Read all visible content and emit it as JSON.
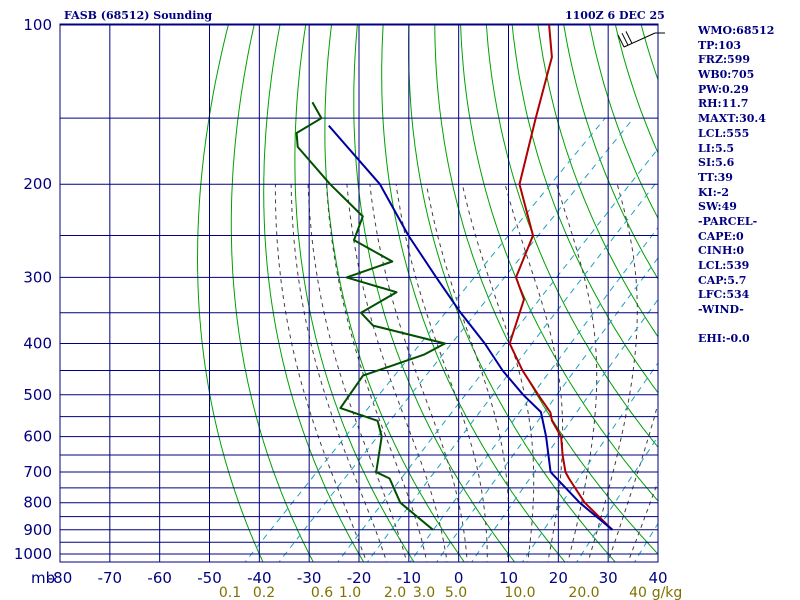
{
  "header": {
    "station_title": "FASB (68512) Sounding",
    "time_date": "1100Z  6 DEC 25"
  },
  "indices": [
    "WMO:68512",
    "TP:103",
    "FRZ:599",
    "WB0:705",
    "PW:0.29",
    "RH:11.7",
    "MAXT:30.4",
    "LCL:555",
    "LI:5.5",
    "SI:5.6",
    "TT:39",
    "KI:-2",
    "SW:49",
    "-PARCEL-",
    "CAPE:0",
    "CINH:0",
    "LCL:539",
    "CAP:5.7",
    "LFC:534",
    "-WIND-",
    "",
    "EHI:-0.0"
  ],
  "chart_data": {
    "type": "line",
    "title": "",
    "xlabel": "",
    "ylabel": "mb",
    "chart_kind": "skew-t log-p sounding",
    "y_scale": "log pressure",
    "xlim": [
      -80,
      40
    ],
    "ylim": [
      1000,
      100
    ],
    "pressure_ticks": [
      100,
      200,
      300,
      400,
      500,
      600,
      700,
      800,
      900,
      1000
    ],
    "pressure_gridlines": [
      100,
      150,
      200,
      250,
      300,
      350,
      400,
      450,
      500,
      550,
      600,
      650,
      700,
      750,
      800,
      850,
      900,
      950,
      1000
    ],
    "temperature_ticks": [
      -80,
      -70,
      -60,
      -50,
      -40,
      -30,
      -20,
      -10,
      0,
      10,
      20,
      30,
      40
    ],
    "temperature_tick_labels": [
      "-80",
      "-70",
      "-60",
      "-50",
      "-40",
      "-30",
      "-20",
      "-10",
      "0",
      "10",
      "20",
      "30",
      "40"
    ],
    "mixing_ratio_labels": [
      "0.1",
      "0.2",
      "0.6",
      "1.0",
      "2.0",
      "3.0",
      "5.0",
      "10.0",
      "20.0",
      "40",
      "g/kg"
    ],
    "mixing_ratio_values": [
      0.1,
      0.2,
      0.6,
      1.0,
      2.0,
      3.0,
      5.0,
      10.0,
      20.0,
      40
    ],
    "series": [
      {
        "role": "temperature",
        "color": "#b00000",
        "points": [
          [
            100,
            -88
          ],
          [
            115,
            -81
          ],
          [
            150,
            -72
          ],
          [
            200,
            -62
          ],
          [
            250,
            -49
          ],
          [
            300,
            -44
          ],
          [
            330,
            -38
          ],
          [
            400,
            -32
          ],
          [
            450,
            -24
          ],
          [
            500,
            -16
          ],
          [
            540,
            -10
          ],
          [
            560,
            -8
          ],
          [
            600,
            -3
          ],
          [
            650,
            1
          ],
          [
            700,
            5
          ],
          [
            720,
            7
          ],
          [
            800,
            15
          ],
          [
            900,
            26
          ]
        ]
      },
      {
        "role": "dewpoint",
        "color": "#005000",
        "points": [
          [
            140,
            -120
          ],
          [
            150,
            -115
          ],
          [
            160,
            -117
          ],
          [
            170,
            -114
          ],
          [
            200,
            -100
          ],
          [
            230,
            -87
          ],
          [
            255,
            -84
          ],
          [
            280,
            -72
          ],
          [
            300,
            -78
          ],
          [
            320,
            -65
          ],
          [
            350,
            -68
          ],
          [
            370,
            -63
          ],
          [
            400,
            -45
          ],
          [
            420,
            -47
          ],
          [
            460,
            -55
          ],
          [
            530,
            -53
          ],
          [
            560,
            -43
          ],
          [
            600,
            -39
          ],
          [
            700,
            -33
          ],
          [
            720,
            -29
          ],
          [
            800,
            -22
          ],
          [
            900,
            -10
          ]
        ]
      },
      {
        "role": "parcel",
        "color": "#0000a0",
        "points": [
          [
            155,
            -112
          ],
          [
            200,
            -90
          ],
          [
            250,
            -74
          ],
          [
            300,
            -60
          ],
          [
            350,
            -48
          ],
          [
            400,
            -37
          ],
          [
            450,
            -28
          ],
          [
            500,
            -19
          ],
          [
            539,
            -12
          ],
          [
            600,
            -6
          ],
          [
            700,
            2
          ],
          [
            800,
            14
          ],
          [
            900,
            26
          ]
        ]
      }
    ],
    "wind": {
      "shown_at_mb": 100
    },
    "colors": {
      "grid": "#000080",
      "dry_adiabat": "#00a000",
      "moist_adiabat": "#404040",
      "mixing_ratio": "#20a0c0",
      "mixing_ratio_label": "#807000"
    }
  }
}
